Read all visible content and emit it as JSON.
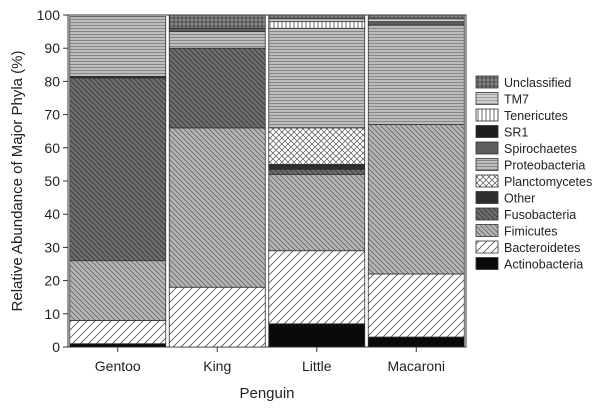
{
  "chart_data": {
    "type": "bar",
    "stacked": true,
    "xlabel": "Penguin",
    "ylabel": "Relative Abundance of Major Phyla (%)",
    "ylim": [
      0,
      100
    ],
    "yticks": [
      0,
      10,
      20,
      30,
      40,
      50,
      60,
      70,
      80,
      90,
      100
    ],
    "categories": [
      "Gentoo",
      "King",
      "Little",
      "Macaroni"
    ],
    "series": [
      {
        "name": "Actinobacteria",
        "pattern": "solid-black",
        "values": [
          1,
          0,
          7,
          3
        ]
      },
      {
        "name": "Bacteroidetes",
        "pattern": "diag-right-sparse",
        "values": [
          7,
          18,
          22,
          19
        ]
      },
      {
        "name": "Fimicutes",
        "pattern": "diag-left-dense",
        "values": [
          18,
          48,
          23,
          45
        ]
      },
      {
        "name": "Fusobacteria",
        "pattern": "diag-left-dark",
        "values": [
          55,
          24,
          1.5,
          0
        ]
      },
      {
        "name": "Other",
        "pattern": "solid-dark",
        "values": [
          0.5,
          0,
          1.5,
          0
        ]
      },
      {
        "name": "Planctomycetes",
        "pattern": "crosshatch",
        "values": [
          0,
          0,
          11,
          0
        ]
      },
      {
        "name": "Proteobacteria",
        "pattern": "horizontal",
        "values": [
          18,
          5,
          30,
          30
        ]
      },
      {
        "name": "Spirochaetes",
        "pattern": "solid-mid",
        "values": [
          0,
          1,
          0,
          1
        ]
      },
      {
        "name": "SR1",
        "pattern": "solid-darker",
        "values": [
          0,
          0,
          0,
          0
        ]
      },
      {
        "name": "Tenericutes",
        "pattern": "vertical",
        "values": [
          0,
          0,
          2,
          0
        ]
      },
      {
        "name": "TM7",
        "pattern": "horizontal-light",
        "values": [
          0,
          0,
          1,
          1
        ]
      },
      {
        "name": "Unclassified",
        "pattern": "grid",
        "values": [
          0,
          4,
          1,
          1
        ]
      }
    ],
    "legend_position": "right",
    "legend_order": [
      "Unclassified",
      "TM7",
      "Tenericutes",
      "SR1",
      "Spirochaetes",
      "Proteobacteria",
      "Planctomycetes",
      "Other",
      "Fusobacteria",
      "Fimicutes",
      "Bacteroidetes",
      "Actinobacteria"
    ]
  }
}
